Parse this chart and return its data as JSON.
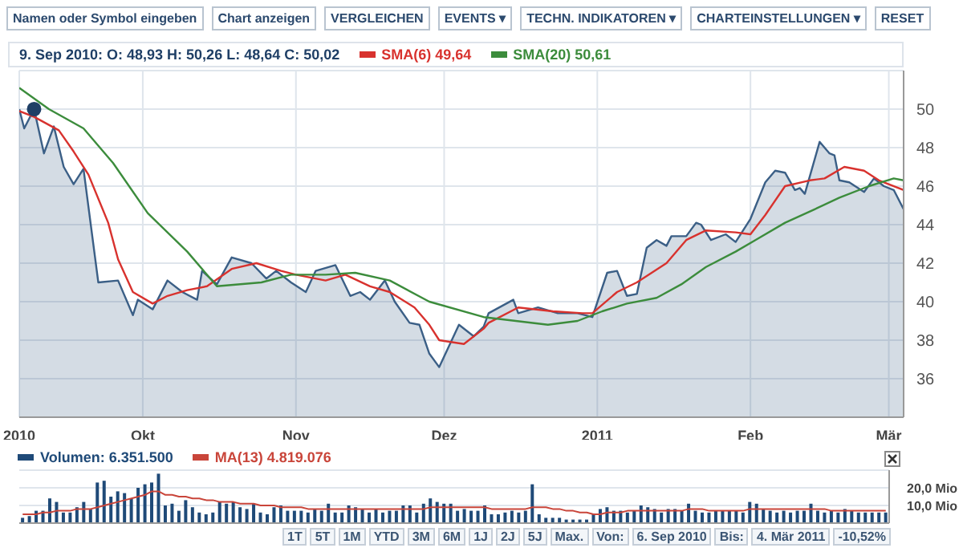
{
  "chart_data": [
    {
      "type": "area",
      "legend": "top",
      "grid": true,
      "marker": "none",
      "line_style": "solid",
      "annotations": [
        "Namen oder Symbol eingeben",
        "Chart anzeigen",
        "VERGLEICHEN",
        "EVENTS ▾",
        "TECHN. INDIKATOREN ▾",
        "CHARTEINSTELLUNGEN ▾",
        "RESET"
      ],
      "subtitle": "9. Sep 2010: O: 48,93 H: 50,26 L: 48,64 C: 50,02",
      "xlim": [
        "2010-09-06",
        "2011-03-04"
      ],
      "xticks": [
        {
          "value": "2010-09-06",
          "label": "2010"
        },
        {
          "value": "2010-10-01",
          "label": "Okt"
        },
        {
          "value": "2010-11-01",
          "label": "Nov"
        },
        {
          "value": "2010-12-01",
          "label": "Dez"
        },
        {
          "value": "2011-01-01",
          "label": "2011"
        },
        {
          "value": "2011-02-01",
          "label": "Feb"
        },
        {
          "value": "2011-03-01",
          "label": "Mär"
        }
      ],
      "ylim": [
        34,
        52
      ],
      "yticks": [
        36,
        38,
        40,
        42,
        44,
        46,
        48,
        50
      ],
      "series": [
        {
          "type": "area",
          "color": "#3b5f86",
          "x": [
            "2010-09-06",
            "2010-09-07",
            "2010-09-09",
            "2010-09-11",
            "2010-09-13",
            "2010-09-15",
            "2010-09-17",
            "2010-09-19",
            "2010-09-22",
            "2010-09-26",
            "2010-09-29",
            "2010-09-30",
            "2010-10-03",
            "2010-10-06",
            "2010-10-09",
            "2010-10-12",
            "2010-10-13",
            "2010-10-16",
            "2010-10-19",
            "2010-10-23",
            "2010-10-26",
            "2010-10-28",
            "2010-10-31",
            "2010-11-03",
            "2010-11-05",
            "2010-11-09",
            "2010-11-12",
            "2010-11-14",
            "2010-11-16",
            "2010-11-19",
            "2010-11-21",
            "2010-11-24",
            "2010-11-26",
            "2010-11-28",
            "2010-11-30",
            "2010-12-04",
            "2010-12-07",
            "2010-12-09",
            "2010-12-10",
            "2010-12-15",
            "2010-12-16",
            "2010-12-20",
            "2010-12-24",
            "2010-12-28",
            "2010-12-31",
            "2011-01-03",
            "2011-01-05",
            "2011-01-07",
            "2011-01-09",
            "2011-01-11",
            "2011-01-13",
            "2011-01-15",
            "2011-01-16",
            "2011-01-19",
            "2011-01-21",
            "2011-01-22",
            "2011-01-24",
            "2011-01-27",
            "2011-01-29",
            "2011-02-01",
            "2011-02-04",
            "2011-02-06",
            "2011-02-08",
            "2011-02-10",
            "2011-02-11",
            "2011-02-12",
            "2011-02-15",
            "2011-02-17",
            "2011-02-18",
            "2011-02-19",
            "2011-02-21",
            "2011-02-24",
            "2011-02-26",
            "2011-02-28",
            "2011-03-02",
            "2011-03-04"
          ],
          "values": [
            50.0,
            49.0,
            50.0,
            47.7,
            49.1,
            47.0,
            46.1,
            46.9,
            41.0,
            41.1,
            39.3,
            40.1,
            39.6,
            41.1,
            40.5,
            40.1,
            41.6,
            40.9,
            42.3,
            42.0,
            41.2,
            41.6,
            41.0,
            40.5,
            41.6,
            41.9,
            40.3,
            40.5,
            40.1,
            41.1,
            40.0,
            38.9,
            38.8,
            37.3,
            36.6,
            38.8,
            38.2,
            38.7,
            39.4,
            40.1,
            39.4,
            39.7,
            39.4,
            39.4,
            39.2,
            41.5,
            41.6,
            40.3,
            40.4,
            42.8,
            43.2,
            42.9,
            43.4,
            43.4,
            44.1,
            44.0,
            43.2,
            43.5,
            43.1,
            44.3,
            46.2,
            46.8,
            46.7,
            45.8,
            45.9,
            45.6,
            48.3,
            47.7,
            47.6,
            46.3,
            46.2,
            45.7,
            46.4,
            46.0,
            45.8,
            44.8
          ]
        },
        {
          "type": "scatter",
          "marker": "circle",
          "color": "#1f3f66",
          "x": [
            "2010-09-09"
          ],
          "values": [
            50.0
          ]
        },
        {
          "type": "line",
          "name": "SMA(6) 49,64",
          "color": "#d8322e",
          "x": [
            "2010-09-06",
            "2010-09-09",
            "2010-09-14",
            "2010-09-17",
            "2010-09-20",
            "2010-09-24",
            "2010-09-26",
            "2010-09-29",
            "2010-10-03",
            "2010-10-06",
            "2010-10-10",
            "2010-10-14",
            "2010-10-19",
            "2010-10-24",
            "2010-10-29",
            "2010-11-01",
            "2010-11-07",
            "2010-11-11",
            "2010-11-16",
            "2010-11-20",
            "2010-11-25",
            "2010-11-28",
            "2010-11-30",
            "2010-12-05",
            "2010-12-09",
            "2010-12-10",
            "2010-12-16",
            "2010-12-23",
            "2010-12-29",
            "2010-12-31",
            "2011-01-05",
            "2011-01-09",
            "2011-01-15",
            "2011-01-19",
            "2011-01-23",
            "2011-01-29",
            "2011-02-01",
            "2011-02-04",
            "2011-02-08",
            "2011-02-13",
            "2011-02-16",
            "2011-02-20",
            "2011-02-24",
            "2011-02-27",
            "2011-03-04"
          ],
          "values": [
            49.9,
            49.6,
            48.9,
            47.8,
            46.6,
            44.1,
            42.2,
            40.5,
            39.9,
            40.3,
            40.6,
            40.8,
            41.7,
            42.0,
            41.6,
            41.4,
            41.1,
            41.4,
            40.8,
            40.5,
            39.7,
            38.8,
            38.0,
            37.8,
            38.6,
            38.9,
            39.7,
            39.5,
            39.4,
            39.4,
            40.5,
            41.0,
            42.0,
            43.2,
            43.7,
            43.6,
            43.5,
            44.5,
            46.0,
            46.3,
            46.4,
            47.0,
            46.8,
            46.3,
            45.8
          ]
        },
        {
          "type": "line",
          "name": "SMA(20) 50,61",
          "color": "#3c8c3c",
          "x": [
            "2010-09-06",
            "2010-09-12",
            "2010-09-19",
            "2010-09-25",
            "2010-10-02",
            "2010-10-10",
            "2010-10-16",
            "2010-10-25",
            "2010-10-31",
            "2010-11-07",
            "2010-11-13",
            "2010-11-20",
            "2010-11-28",
            "2010-12-09",
            "2010-12-22",
            "2010-12-28",
            "2011-01-02",
            "2011-01-07",
            "2011-01-13",
            "2011-01-18",
            "2011-01-23",
            "2011-01-29",
            "2011-02-02",
            "2011-02-08",
            "2011-02-14",
            "2011-02-19",
            "2011-02-25",
            "2011-03-02",
            "2011-03-04"
          ],
          "values": [
            51.1,
            50.0,
            49.0,
            47.2,
            44.6,
            42.6,
            40.8,
            41.0,
            41.4,
            41.4,
            41.5,
            41.1,
            40.0,
            39.2,
            38.8,
            39.0,
            39.5,
            39.9,
            40.2,
            40.9,
            41.8,
            42.6,
            43.2,
            44.1,
            44.8,
            45.4,
            46.0,
            46.4,
            46.3
          ]
        }
      ]
    },
    {
      "type": "bar",
      "legend": "top left",
      "grid": "y",
      "tick_labels": "y",
      "marker": "none",
      "annotations": [
        "1T",
        "5T",
        "1M",
        "YTD",
        "3M",
        "6M",
        "1J",
        "2J",
        "5J",
        "Max.",
        "Von:",
        "6. Sep 2010",
        "Bis:",
        "4. Mär 2011",
        "-10,52%"
      ],
      "categories": [
        null,
        null,
        null,
        null,
        null,
        null,
        null,
        null,
        null,
        null,
        null,
        null,
        null,
        null,
        null,
        null,
        null,
        null,
        null,
        null,
        null,
        null,
        null,
        null,
        null,
        null,
        null,
        null,
        null,
        null,
        null,
        null,
        null,
        null,
        null,
        null,
        null,
        null,
        null,
        null,
        null,
        null,
        null,
        null,
        null,
        null,
        null,
        null,
        null,
        null,
        null,
        null,
        null,
        null,
        null,
        null,
        null,
        null,
        null,
        null,
        null,
        null,
        null,
        null,
        null,
        null,
        null,
        null,
        null,
        null,
        null,
        null,
        null,
        null,
        null,
        null,
        null,
        null,
        null,
        null,
        null,
        null,
        null,
        null,
        null,
        null,
        null,
        null,
        null,
        null,
        null,
        null,
        null,
        null,
        null,
        null,
        null,
        null,
        null,
        null,
        null,
        null,
        null,
        null,
        null,
        null,
        null,
        null,
        null,
        null,
        null,
        null,
        null,
        null,
        null,
        null,
        null,
        null,
        null,
        null,
        null,
        null,
        null,
        null,
        null,
        null,
        null,
        null
      ],
      "ylim": [
        0,
        30
      ],
      "yticks": [
        {
          "value": 10,
          "label": "10,0 Mio"
        },
        {
          "value": 20,
          "label": "20,0 Mio"
        }
      ],
      "series": [
        {
          "type": "bar",
          "name": "Volumen: 6.351.500",
          "color": "#1f4a78",
          "values": [
            3,
            4,
            7,
            7,
            14,
            12,
            6,
            6,
            9,
            12,
            8,
            23,
            24,
            15,
            18,
            17,
            14,
            20,
            22,
            23,
            28,
            10,
            11,
            7,
            13,
            9,
            6,
            5,
            6,
            12,
            11,
            12,
            9,
            8,
            11,
            6,
            5,
            9,
            10,
            7,
            7,
            7,
            6,
            8,
            7,
            11,
            6,
            6,
            10,
            9,
            8,
            6,
            8,
            6,
            7,
            7,
            10,
            10,
            6,
            11,
            14,
            12,
            11,
            11,
            7,
            8,
            7,
            7,
            10,
            5,
            5,
            6,
            7,
            6,
            7,
            22,
            5,
            3,
            3,
            3,
            2,
            2,
            2,
            2,
            5,
            8,
            9,
            7,
            7,
            6,
            7,
            10,
            9,
            8,
            6,
            8,
            8,
            7,
            11,
            7,
            6,
            6,
            7,
            7,
            7,
            7,
            6,
            12,
            11,
            8,
            7,
            6,
            7,
            6,
            7,
            7,
            11,
            7,
            6,
            7,
            6,
            8,
            7,
            6,
            6,
            6,
            6,
            6
          ]
        },
        {
          "type": "line",
          "name": "MA(13) 4.819.076",
          "color": "#c9453a",
          "values": [
            5,
            5,
            5,
            6,
            6,
            7,
            7,
            7,
            8,
            8,
            8,
            9,
            10,
            11,
            12,
            13,
            14,
            15,
            16,
            18,
            18,
            16,
            16,
            15,
            15,
            14,
            14,
            13,
            13,
            12,
            12,
            12,
            11,
            11,
            11,
            10,
            10,
            10,
            9,
            9,
            9,
            9,
            8,
            8,
            8,
            8,
            8,
            8,
            8,
            8,
            8,
            8,
            8,
            8,
            8,
            8,
            8,
            8,
            8,
            8,
            9,
            9,
            9,
            9,
            9,
            9,
            9,
            9,
            9,
            8,
            8,
            8,
            8,
            8,
            8,
            9,
            9,
            9,
            8,
            8,
            7,
            7,
            6,
            6,
            5,
            5,
            6,
            6,
            6,
            7,
            7,
            7,
            7,
            7,
            7,
            7,
            7,
            7,
            8,
            8,
            8,
            7,
            7,
            7,
            7,
            7,
            7,
            8,
            8,
            8,
            8,
            8,
            8,
            8,
            8,
            8,
            8,
            8,
            8,
            7,
            7,
            7,
            7,
            7,
            7,
            7,
            7,
            7
          ]
        }
      ]
    }
  ]
}
